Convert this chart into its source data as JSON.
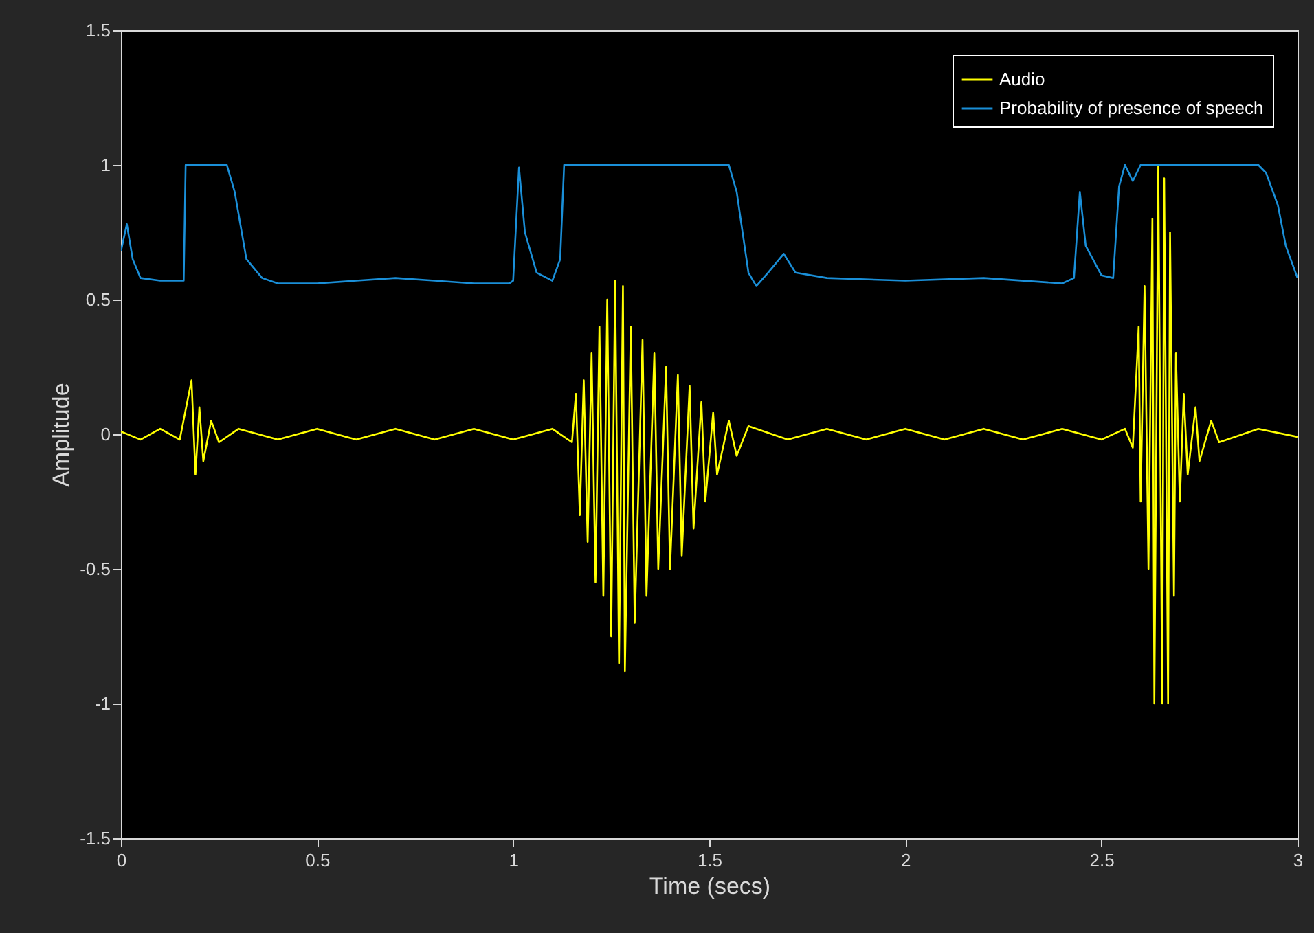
{
  "chart_data": {
    "type": "line",
    "xlabel": "Time (secs)",
    "ylabel": "Amplitude",
    "xlim": [
      0,
      3
    ],
    "xticks": [
      0,
      0.5,
      1,
      1.5,
      2,
      2.5,
      3
    ],
    "ylim": [
      -1.5,
      1.5
    ],
    "yticks": [
      -1.5,
      -1,
      -0.5,
      0,
      0.5,
      1,
      1.5
    ],
    "grid": false,
    "legend": "top right",
    "line_style": "solid",
    "marker": "none",
    "series": [
      {
        "name": "Audio",
        "color": "#ffff00",
        "x": [
          0,
          0.05,
          0.1,
          0.15,
          0.18,
          0.19,
          0.2,
          0.21,
          0.23,
          0.25,
          0.3,
          0.4,
          0.5,
          0.6,
          0.7,
          0.8,
          0.9,
          1.0,
          1.1,
          1.15,
          1.16,
          1.17,
          1.18,
          1.19,
          1.2,
          1.21,
          1.22,
          1.23,
          1.24,
          1.25,
          1.26,
          1.27,
          1.28,
          1.285,
          1.3,
          1.31,
          1.33,
          1.34,
          1.36,
          1.37,
          1.39,
          1.4,
          1.42,
          1.43,
          1.45,
          1.46,
          1.48,
          1.49,
          1.51,
          1.52,
          1.55,
          1.57,
          1.6,
          1.7,
          1.8,
          1.9,
          2.0,
          2.1,
          2.2,
          2.3,
          2.4,
          2.5,
          2.56,
          2.58,
          2.595,
          2.6,
          2.61,
          2.62,
          2.63,
          2.635,
          2.645,
          2.655,
          2.66,
          2.67,
          2.675,
          2.685,
          2.69,
          2.7,
          2.71,
          2.72,
          2.74,
          2.75,
          2.78,
          2.8,
          2.9,
          3.0
        ],
        "values": [
          0.01,
          -0.02,
          0.02,
          -0.02,
          0.2,
          -0.15,
          0.1,
          -0.1,
          0.05,
          -0.03,
          0.02,
          -0.02,
          0.02,
          -0.02,
          0.02,
          -0.02,
          0.02,
          -0.02,
          0.02,
          -0.03,
          0.15,
          -0.3,
          0.2,
          -0.4,
          0.3,
          -0.55,
          0.4,
          -0.6,
          0.5,
          -0.75,
          0.57,
          -0.85,
          0.55,
          -0.88,
          0.4,
          -0.7,
          0.35,
          -0.6,
          0.3,
          -0.5,
          0.25,
          -0.5,
          0.22,
          -0.45,
          0.18,
          -0.35,
          0.12,
          -0.25,
          0.08,
          -0.15,
          0.05,
          -0.08,
          0.03,
          -0.02,
          0.02,
          -0.02,
          0.02,
          -0.02,
          0.02,
          -0.02,
          0.02,
          -0.02,
          0.02,
          -0.05,
          0.4,
          -0.25,
          0.55,
          -0.5,
          0.8,
          -1.0,
          1.0,
          -1.0,
          0.95,
          -1.0,
          0.75,
          -0.6,
          0.3,
          -0.25,
          0.15,
          -0.15,
          0.1,
          -0.1,
          0.05,
          -0.03,
          0.02,
          -0.01
        ]
      },
      {
        "name": "Probability of presence of speech",
        "color": "#1a8fd8",
        "x": [
          0,
          0.015,
          0.03,
          0.05,
          0.1,
          0.16,
          0.165,
          0.27,
          0.29,
          0.32,
          0.36,
          0.4,
          0.5,
          0.6,
          0.7,
          0.8,
          0.9,
          0.99,
          1.0,
          1.015,
          1.03,
          1.06,
          1.1,
          1.12,
          1.13,
          1.4,
          1.55,
          1.57,
          1.6,
          1.62,
          1.65,
          1.69,
          1.72,
          1.8,
          2.0,
          2.2,
          2.4,
          2.43,
          2.445,
          2.46,
          2.5,
          2.53,
          2.545,
          2.56,
          2.58,
          2.6,
          2.9,
          2.92,
          2.95,
          2.97,
          3.0
        ],
        "values": [
          0.68,
          0.78,
          0.65,
          0.58,
          0.57,
          0.57,
          1.0,
          1.0,
          0.9,
          0.65,
          0.58,
          0.56,
          0.56,
          0.57,
          0.58,
          0.57,
          0.56,
          0.56,
          0.57,
          0.99,
          0.75,
          0.6,
          0.57,
          0.65,
          1.0,
          1.0,
          1.0,
          0.9,
          0.6,
          0.55,
          0.6,
          0.67,
          0.6,
          0.58,
          0.57,
          0.58,
          0.56,
          0.58,
          0.9,
          0.7,
          0.59,
          0.58,
          0.92,
          1.0,
          0.94,
          1.0,
          1.0,
          0.97,
          0.85,
          0.7,
          0.58
        ]
      }
    ]
  }
}
